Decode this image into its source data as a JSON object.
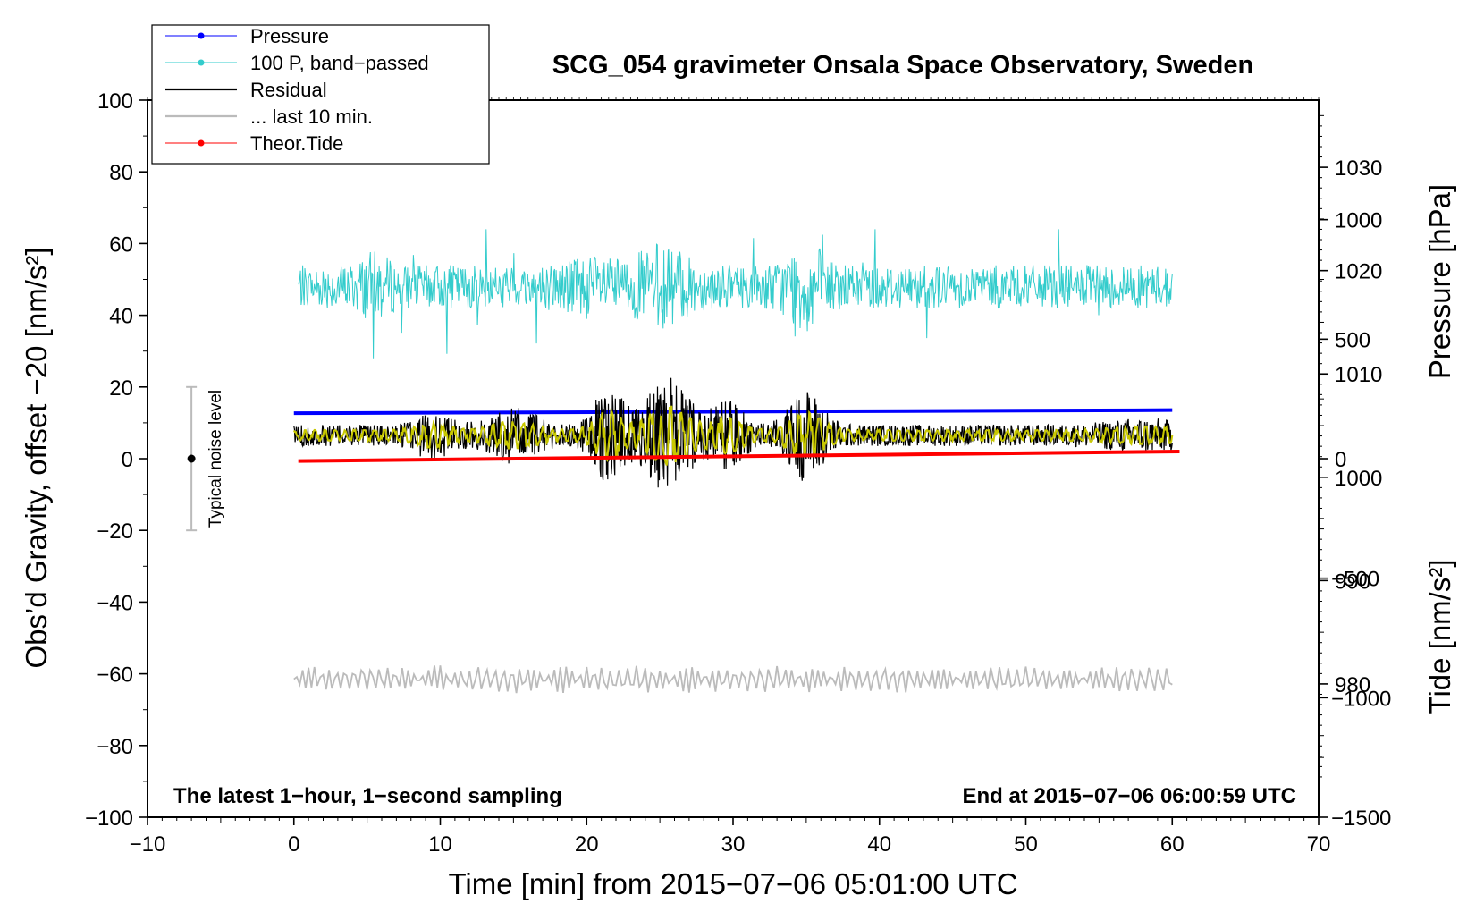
{
  "chart_data": {
    "type": "line",
    "title": "SCG_054 gravimeter Onsala Space Observatory, Sweden",
    "xlabel": "Time [min] from 2015−07−06 05:01:00 UTC",
    "ylabel_left": "Obs’d Gravity, offset −20 [nm/s²]",
    "ylabel_pressure": "Pressure [hPa]",
    "ylabel_tide": "Tide [nm/s²]",
    "xlim": [
      -10,
      70
    ],
    "ylim": [
      -100,
      100
    ],
    "pressure_lim": [
      967.1,
      1036.5
    ],
    "tide_lim": [
      -1500,
      1500
    ],
    "x_ticks": [
      -10,
      0,
      10,
      20,
      30,
      40,
      50,
      60,
      70
    ],
    "x_tick_labels": [
      "−10",
      "0",
      "10",
      "20",
      "30",
      "40",
      "50",
      "60",
      "70"
    ],
    "y_ticks": [
      -100,
      -80,
      -60,
      -40,
      -20,
      0,
      20,
      40,
      60,
      80,
      100
    ],
    "y_tick_labels": [
      "−100",
      "−80",
      "−60",
      "−40",
      "−20",
      "0",
      "20",
      "40",
      "60",
      "80",
      "100"
    ],
    "pressure_ticks": [
      980,
      990,
      1000,
      1010,
      1020,
      1030
    ],
    "pressure_tick_labels": [
      "980",
      "990",
      "1000",
      "1010",
      "1020",
      "1030"
    ],
    "tide_ticks": [
      -1500,
      -1000,
      -500,
      0,
      500,
      1000
    ],
    "tide_tick_labels": [
      "−1500",
      "−1000",
      "−500",
      "0",
      "500",
      "1000"
    ],
    "legend": {
      "position": "top-left",
      "entries": [
        {
          "label": "Pressure",
          "color": "#0000ff",
          "marker": true
        },
        {
          "label": "100 P, band−passed",
          "color": "#33cccc",
          "marker": true
        },
        {
          "label": "Residual",
          "color": "#000000",
          "marker": false
        },
        {
          "label": "... last 10 min.",
          "color": "#bbbbbb",
          "marker": false
        },
        {
          "label": "Theor.Tide",
          "color": "#ff0000",
          "marker": true
        }
      ]
    },
    "annotations": {
      "left": "The latest 1−hour, 1−second sampling",
      "right": "End at 2015−07−06 06:00:59 UTC",
      "noise": "Typical noise level"
    },
    "noise_bar": {
      "x": -7,
      "center": 0,
      "low": -20,
      "high": 20
    },
    "series": [
      {
        "name": "Pressure",
        "axis": "pressure",
        "color": "#0000ff",
        "x": [
          0,
          60
        ],
        "y": [
          1006.2,
          1006.5
        ]
      },
      {
        "name": "100 P, band−passed",
        "axis": "left",
        "color": "#33cccc",
        "x_range": [
          0.3,
          60
        ],
        "baseline": 48,
        "amplitude_peaks": [
          {
            "x": 5,
            "y": 30
          },
          {
            "x": 25,
            "y": 30
          },
          {
            "x": 35,
            "y": 28
          },
          {
            "x": 35,
            "y": 64
          }
        ]
      },
      {
        "name": "Residual",
        "axis": "left",
        "color": "#000000",
        "x_range": [
          0,
          60
        ],
        "baseline": 6.5,
        "amplitude_peaks": [
          {
            "x": 25,
            "y": 24
          },
          {
            "x": 25,
            "y": -13
          },
          {
            "x": 21,
            "y": 22
          },
          {
            "x": 35,
            "y": 20
          }
        ]
      },
      {
        "name": "Residual (smoothed)",
        "axis": "left",
        "color": "#c8c800",
        "x_range": [
          0,
          60
        ],
        "baseline": 6.5
      },
      {
        "name": "... last 10 min.",
        "axis": "left",
        "color": "#bbbbbb",
        "x_range": [
          0,
          60
        ],
        "baseline": -61.5,
        "range": [
          -66,
          -57
        ]
      },
      {
        "name": "Theor.Tide",
        "axis": "tide",
        "color": "#ff0000",
        "x": [
          0.3,
          60.5
        ],
        "y": [
          -10,
          30
        ]
      }
    ]
  },
  "colors": {
    "pressure": "#0000ff",
    "band_passed": "#33cccc",
    "residual": "#000000",
    "residual_smooth": "#c8c800",
    "last10": "#bbbbbb",
    "tide": "#ff0000"
  }
}
